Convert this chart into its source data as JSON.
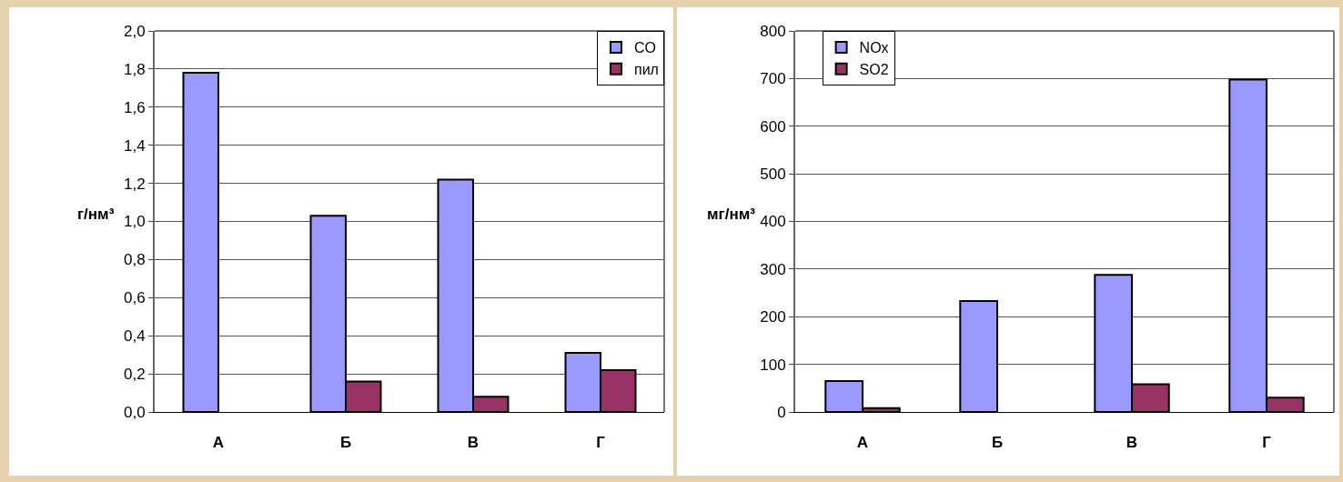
{
  "chart_data": [
    {
      "type": "bar",
      "ylabel": "г/нм³",
      "categories": [
        "А",
        "Б",
        "В",
        "Г"
      ],
      "series": [
        {
          "name": "CO",
          "color": "#9999ff",
          "values": [
            1.78,
            1.03,
            1.22,
            0.31
          ]
        },
        {
          "name": "пил",
          "color": "#993366",
          "values": [
            null,
            0.16,
            0.08,
            0.22
          ]
        }
      ],
      "ylim": [
        0,
        2
      ],
      "yticks": [
        {
          "value": 0,
          "label": "0,0"
        },
        {
          "value": 0.2,
          "label": "0,2"
        },
        {
          "value": 0.4,
          "label": "0,4"
        },
        {
          "value": 0.6,
          "label": "0,6"
        },
        {
          "value": 0.8,
          "label": "0,8"
        },
        {
          "value": 1,
          "label": "1,0"
        },
        {
          "value": 1.2,
          "label": "1,2"
        },
        {
          "value": 1.4,
          "label": "1,4"
        },
        {
          "value": 1.6,
          "label": "1,6"
        },
        {
          "value": 1.8,
          "label": "1,8"
        },
        {
          "value": 2,
          "label": "2,0"
        }
      ],
      "grid": "y",
      "legend": "top right"
    },
    {
      "type": "bar",
      "ylabel": "мг/нм³",
      "categories": [
        "А",
        "Б",
        "В",
        "Г"
      ],
      "series": [
        {
          "name": "NOx",
          "color": "#9999ff",
          "values": [
            65,
            233,
            288,
            698
          ]
        },
        {
          "name": "SO2",
          "color": "#993366",
          "values": [
            8,
            null,
            58,
            30
          ]
        }
      ],
      "ylim": [
        0,
        800
      ],
      "yticks": [
        0,
        100,
        200,
        300,
        400,
        500,
        600,
        700,
        800
      ],
      "grid": "y",
      "legend": "top left"
    }
  ]
}
